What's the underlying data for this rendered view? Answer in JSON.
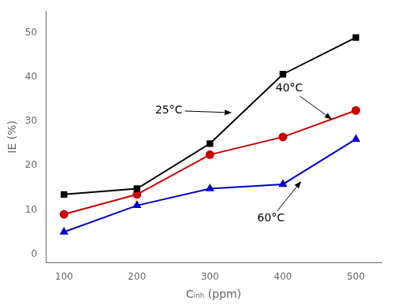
{
  "chart_data": {
    "type": "line",
    "x": [
      100,
      200,
      300,
      400,
      500
    ],
    "series": [
      {
        "color": "#000000",
        "marker": "square",
        "values": [
          13.5,
          14.8,
          25.0,
          40.7,
          49.0
        ]
      },
      {
        "color": "#cc0000",
        "marker": "circle",
        "values": [
          9.0,
          13.5,
          22.5,
          26.5,
          32.5
        ]
      },
      {
        "color": "#0000cc",
        "marker": "triangle",
        "values": [
          5.0,
          11.0,
          14.8,
          15.8,
          26.0
        ]
      }
    ],
    "xlabel": "Cᵢₙₕ (ppm)",
    "ylabel": "IE (%)",
    "xlim": [
      75,
      535
    ],
    "ylim": [
      -2,
      55
    ],
    "xticks": [
      100,
      200,
      300,
      400,
      500
    ],
    "yticks": [
      0,
      10,
      20,
      30,
      40,
      50
    ],
    "grid": false,
    "annotations": [
      {
        "text": "25°C",
        "xy": [
          330,
          32.0
        ],
        "xytext": [
          225,
          32.5
        ]
      },
      {
        "text": "40°C",
        "xy": [
          467,
          30.5
        ],
        "xytext": [
          390,
          37.5
        ]
      },
      {
        "text": "60°C",
        "xy": [
          425,
          16.5
        ],
        "xytext": [
          365,
          8.0
        ]
      }
    ]
  }
}
